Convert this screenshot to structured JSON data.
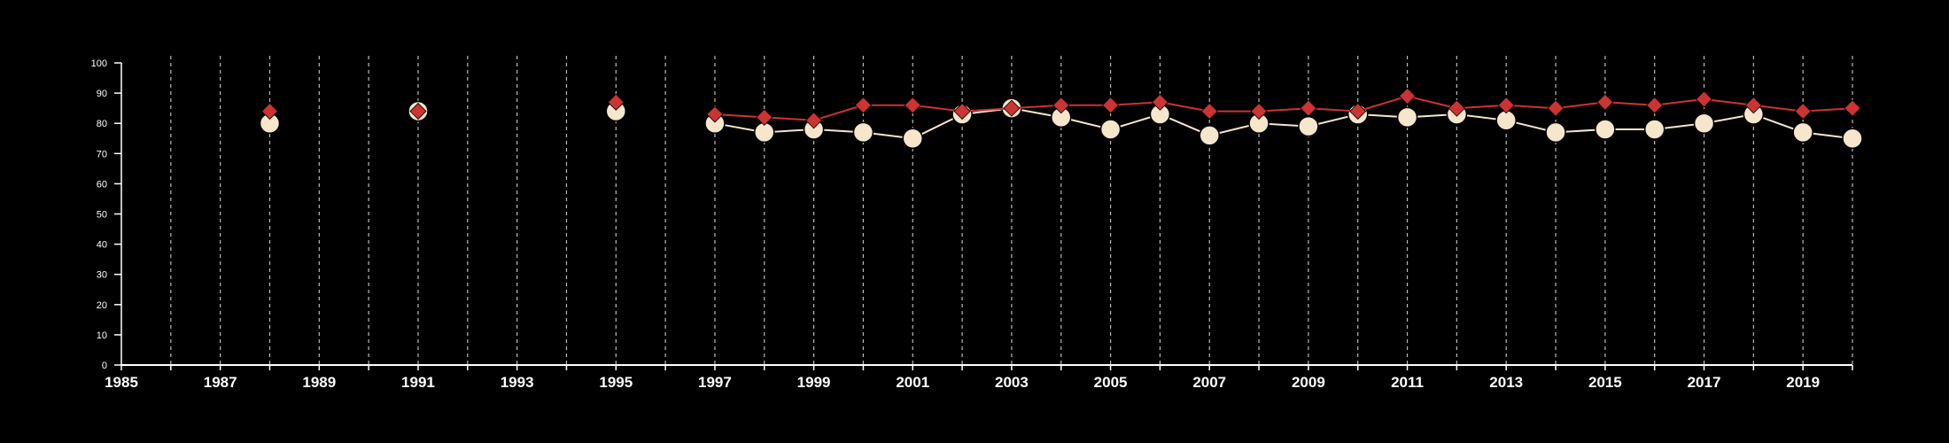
{
  "chart_data": {
    "type": "line",
    "title": "",
    "xlabel": "",
    "ylabel": "",
    "xlim": [
      1985,
      2020
    ],
    "ylim": [
      0,
      100
    ],
    "y_ticks": [
      0,
      10,
      20,
      30,
      40,
      50,
      60,
      70,
      80,
      90,
      100
    ],
    "x_tick_labels": [
      1985,
      1987,
      1989,
      1991,
      1993,
      1995,
      1997,
      1999,
      2001,
      2003,
      2005,
      2007,
      2009,
      2011,
      2013,
      2015,
      2017,
      2019
    ],
    "vertical_grid": true,
    "vertical_grid_style": "dashed",
    "background": "#000000",
    "axis_color": "#ffffff",
    "series": [
      {
        "marker": "diamond",
        "color": "#cc3333",
        "points": [
          {
            "x": 1988,
            "y": 84
          },
          {
            "x": 1991,
            "y": 84
          },
          {
            "x": 1995,
            "y": 87
          },
          {
            "x": 1997,
            "y": 83
          },
          {
            "x": 1998,
            "y": 82
          },
          {
            "x": 1999,
            "y": 81
          },
          {
            "x": 2000,
            "y": 86
          },
          {
            "x": 2001,
            "y": 86
          },
          {
            "x": 2002,
            "y": 84
          },
          {
            "x": 2003,
            "y": 85
          },
          {
            "x": 2004,
            "y": 86
          },
          {
            "x": 2005,
            "y": 86
          },
          {
            "x": 2006,
            "y": 87
          },
          {
            "x": 2007,
            "y": 84
          },
          {
            "x": 2008,
            "y": 84
          },
          {
            "x": 2009,
            "y": 85
          },
          {
            "x": 2010,
            "y": 84
          },
          {
            "x": 2011,
            "y": 89
          },
          {
            "x": 2012,
            "y": 85
          },
          {
            "x": 2013,
            "y": 86
          },
          {
            "x": 2014,
            "y": 85
          },
          {
            "x": 2015,
            "y": 87
          },
          {
            "x": 2016,
            "y": 86
          },
          {
            "x": 2017,
            "y": 88
          },
          {
            "x": 2018,
            "y": 86
          },
          {
            "x": 2019,
            "y": 84
          },
          {
            "x": 2020,
            "y": 85
          }
        ]
      },
      {
        "marker": "circle",
        "color": "#f5e6cc",
        "points": [
          {
            "x": 1988,
            "y": 80
          },
          {
            "x": 1991,
            "y": 84
          },
          {
            "x": 1995,
            "y": 84
          },
          {
            "x": 1997,
            "y": 80
          },
          {
            "x": 1998,
            "y": 77
          },
          {
            "x": 1999,
            "y": 78
          },
          {
            "x": 2000,
            "y": 77
          },
          {
            "x": 2001,
            "y": 75
          },
          {
            "x": 2002,
            "y": 83
          },
          {
            "x": 2003,
            "y": 85
          },
          {
            "x": 2004,
            "y": 82
          },
          {
            "x": 2005,
            "y": 78
          },
          {
            "x": 2006,
            "y": 83
          },
          {
            "x": 2007,
            "y": 76
          },
          {
            "x": 2008,
            "y": 80
          },
          {
            "x": 2009,
            "y": 79
          },
          {
            "x": 2010,
            "y": 83
          },
          {
            "x": 2011,
            "y": 82
          },
          {
            "x": 2012,
            "y": 83
          },
          {
            "x": 2013,
            "y": 81
          },
          {
            "x": 2014,
            "y": 77
          },
          {
            "x": 2015,
            "y": 78
          },
          {
            "x": 2016,
            "y": 78
          },
          {
            "x": 2017,
            "y": 80
          },
          {
            "x": 2018,
            "y": 83
          },
          {
            "x": 2019,
            "y": 77
          },
          {
            "x": 2020,
            "y": 75
          }
        ]
      }
    ]
  }
}
